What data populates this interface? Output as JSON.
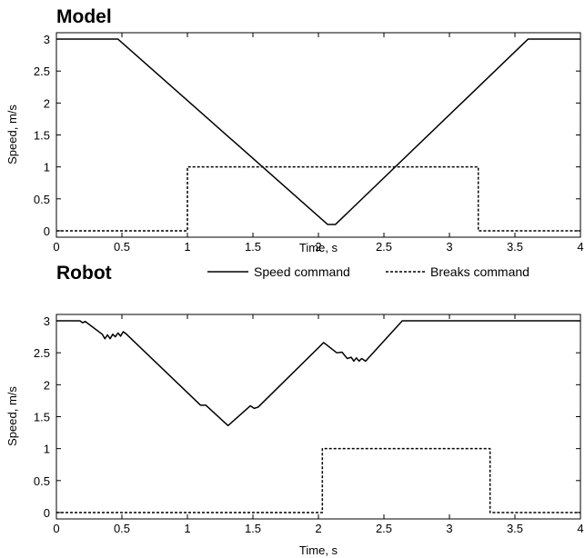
{
  "chart_data": [
    {
      "type": "line",
      "title": "Model",
      "xlabel": "Time, s",
      "ylabel": "Speed, m/s",
      "xlim": [
        0,
        4
      ],
      "ylim": [
        -0.1,
        3.1
      ],
      "xticks": [
        "0",
        "0.5",
        "1",
        "1.5",
        "2",
        "2.5",
        "3",
        "3.5",
        "4"
      ],
      "yticks": [
        "0",
        "0.5",
        "1",
        "1.5",
        "2",
        "2.5",
        "3"
      ],
      "grid": false,
      "series": [
        {
          "name": "Speed command",
          "style": "solid",
          "color": "#000000",
          "x": [
            0,
            0.47,
            2.07,
            2.13,
            3.6,
            4.0
          ],
          "y": [
            3.0,
            3.0,
            0.1,
            0.1,
            3.0,
            3.0
          ]
        },
        {
          "name": "Breaks command",
          "style": "dashed",
          "color": "#000000",
          "x": [
            0,
            1.0,
            1.0,
            3.22,
            3.22,
            4.0
          ],
          "y": [
            0,
            0,
            1,
            1,
            0,
            0
          ]
        }
      ]
    },
    {
      "type": "line",
      "title": "Robot",
      "xlabel": "Time, s",
      "ylabel": "Speed, m/s",
      "xlim": [
        0,
        4
      ],
      "ylim": [
        -0.1,
        3.1
      ],
      "xticks": [
        "0",
        "0.5",
        "1",
        "1.5",
        "2",
        "2.5",
        "3",
        "3.5",
        "4"
      ],
      "yticks": [
        "0",
        "0.5",
        "1",
        "1.5",
        "2",
        "2.5",
        "3"
      ],
      "grid": false,
      "legend_position": "top-right",
      "series": [
        {
          "name": "Speed command",
          "style": "solid",
          "color": "#000000",
          "x": [
            0,
            0.18,
            0.2,
            0.22,
            0.35,
            0.37,
            0.39,
            0.41,
            0.43,
            0.45,
            0.47,
            0.49,
            0.51,
            0.53,
            1.1,
            1.14,
            1.31,
            1.48,
            1.51,
            1.54,
            2.04,
            2.14,
            2.18,
            2.22,
            2.25,
            2.27,
            2.29,
            2.31,
            2.33,
            2.36,
            2.64,
            4.0
          ],
          "y": [
            3.0,
            3.0,
            2.97,
            2.99,
            2.79,
            2.72,
            2.78,
            2.72,
            2.79,
            2.75,
            2.81,
            2.76,
            2.83,
            2.8,
            1.68,
            1.68,
            1.36,
            1.67,
            1.63,
            1.65,
            2.66,
            2.5,
            2.51,
            2.41,
            2.43,
            2.37,
            2.42,
            2.37,
            2.41,
            2.37,
            3.0,
            3.0
          ]
        },
        {
          "name": "Breaks command",
          "style": "dashed",
          "color": "#000000",
          "x": [
            0,
            2.03,
            2.03,
            3.31,
            3.31,
            4.0
          ],
          "y": [
            0,
            0,
            1,
            1,
            0,
            0
          ]
        }
      ]
    }
  ],
  "legend": {
    "items": [
      {
        "label": "Speed command",
        "style": "solid"
      },
      {
        "label": "Breaks command",
        "style": "dashed"
      }
    ]
  }
}
